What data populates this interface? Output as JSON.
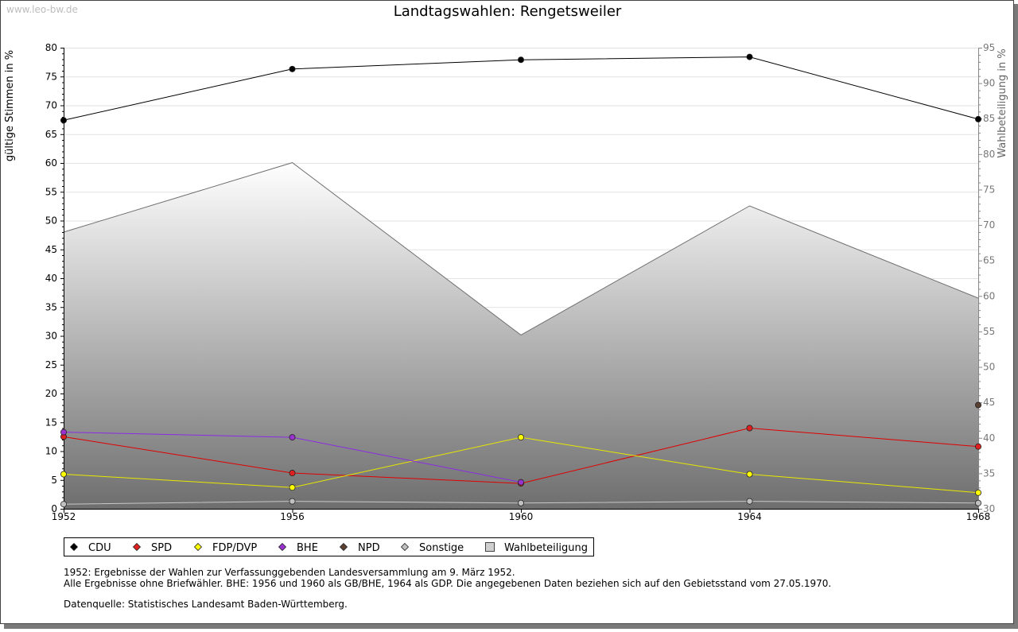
{
  "watermark": "www.leo-bw.de",
  "chart_data": {
    "type": "line",
    "title": "Landtagswahlen: Rengetsweiler",
    "ylabel": "gültige Stimmen in %",
    "y2label": "Wahlbeteiligung in %",
    "x": [
      "1952",
      "1956",
      "1960",
      "1964",
      "1968"
    ],
    "ylim": [
      0,
      80
    ],
    "y2lim": [
      30,
      95
    ],
    "yticks": [
      0,
      5,
      10,
      15,
      20,
      25,
      30,
      35,
      40,
      45,
      50,
      55,
      60,
      65,
      70,
      75,
      80
    ],
    "y2ticks": [
      30,
      35,
      40,
      45,
      50,
      55,
      60,
      65,
      70,
      75,
      80,
      85,
      90,
      95
    ],
    "grid": true,
    "legend_position": "bottom-left",
    "turnout": {
      "name": "Wahlbeteiligung",
      "values": [
        69.0,
        78.8,
        54.5,
        72.7,
        59.7
      ],
      "color": "#707070"
    },
    "series": [
      {
        "name": "CDU",
        "color": "#000000",
        "marker": "#000000",
        "values": [
          67.4,
          76.3,
          77.9,
          78.4,
          67.6
        ]
      },
      {
        "name": "SPD",
        "color": "#e00000",
        "marker": "#e02020",
        "values": [
          12.5,
          6.2,
          4.4,
          14.0,
          10.8
        ]
      },
      {
        "name": "FDP/DVP",
        "color": "#e8e800",
        "marker": "#ffff00",
        "values": [
          6.0,
          3.7,
          12.4,
          6.0,
          2.8
        ]
      },
      {
        "name": "BHE",
        "color": "#8a2be2",
        "marker": "#9932cc",
        "values": [
          13.3,
          12.4,
          4.6,
          null,
          null
        ]
      },
      {
        "name": "NPD",
        "color": "#5a4030",
        "marker": "#5a4030",
        "values": [
          null,
          null,
          null,
          null,
          18.0
        ]
      },
      {
        "name": "Sonstige",
        "color": "#c8c8c8",
        "marker": "#c0c0c0",
        "values": [
          0.8,
          1.3,
          1.0,
          1.3,
          1.0
        ]
      }
    ],
    "notes": [
      "1952: Ergebnisse der Wahlen zur Verfassunggebenden Landesversammlung am 9. März 1952.",
      "Alle Ergebnisse ohne Briefwähler. BHE: 1956 und 1960 als GB/BHE, 1964 als GDP. Die angegebenen Daten beziehen sich auf den Gebietsstand vom 27.05.1970.",
      "Datenquelle: Statistisches Landesamt Baden-Württemberg."
    ]
  }
}
